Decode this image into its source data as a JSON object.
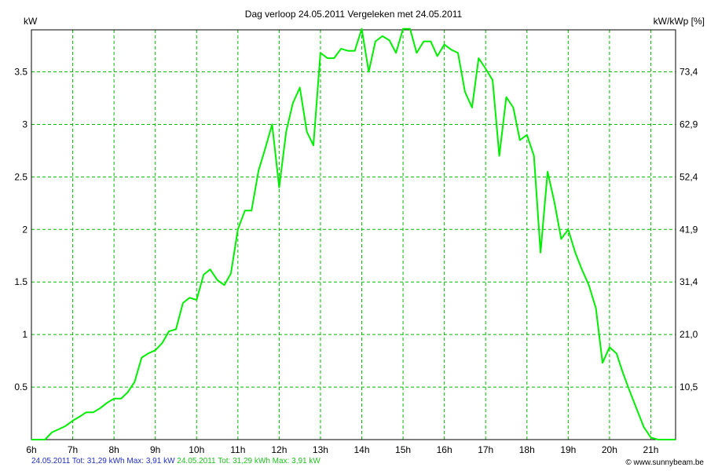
{
  "chart_data": {
    "type": "line",
    "title": "Dag  verloop 24.05.2011   Vergeleken met 24.05.2011",
    "ylabel_left": "kW",
    "ylabel_right": "kW/kWp [%]",
    "x_unit": "hour",
    "xlim": [
      6,
      21.6
    ],
    "ylim": [
      0,
      3.9
    ],
    "x_ticks": [
      "6h",
      "7h",
      "8h",
      "9h",
      "10h",
      "11h",
      "12h",
      "13h",
      "14h",
      "15h",
      "16h",
      "17h",
      "18h",
      "19h",
      "20h",
      "21h"
    ],
    "y_ticks_left": [
      "0.5",
      "1",
      "1.5",
      "2",
      "2.5",
      "3",
      "3.5"
    ],
    "y_ticks_left_values": [
      0.5,
      1,
      1.5,
      2,
      2.5,
      3,
      3.5
    ],
    "y_ticks_right": [
      "10,5",
      "21,0",
      "31,4",
      "41,9",
      "52,4",
      "62,9",
      "73,4"
    ],
    "grid": true,
    "series_color": "#00ee00",
    "series": [
      {
        "x": [
          6.0,
          6.17,
          6.33,
          6.5,
          6.67,
          6.83,
          7.0,
          7.17,
          7.33,
          7.5,
          7.67,
          7.83,
          8.0,
          8.17,
          8.33,
          8.5,
          8.67,
          8.83,
          9.0,
          9.17,
          9.33,
          9.5,
          9.67,
          9.83,
          10.0,
          10.17,
          10.33,
          10.5,
          10.67,
          10.83,
          11.0,
          11.17,
          11.33,
          11.5,
          11.67,
          11.83,
          12.0,
          12.17,
          12.33,
          12.5,
          12.67,
          12.83,
          13.0,
          13.17,
          13.33,
          13.5,
          13.67,
          13.83,
          14.0,
          14.17,
          14.33,
          14.5,
          14.67,
          14.83,
          15.0,
          15.17,
          15.33,
          15.5,
          15.67,
          15.83,
          16.0,
          16.17,
          16.33,
          16.5,
          16.67,
          16.83,
          17.0,
          17.17,
          17.33,
          17.5,
          17.67,
          17.83,
          18.0,
          18.17,
          18.33,
          18.5,
          18.67,
          18.83,
          19.0,
          19.17,
          19.33,
          19.5,
          19.67,
          19.83,
          20.0,
          20.17,
          20.33,
          20.5,
          20.67,
          20.83,
          21.0,
          21.17,
          21.33,
          21.5,
          21.6
        ],
        "y": [
          0.0,
          0.0,
          0.0,
          0.07,
          0.1,
          0.13,
          0.18,
          0.22,
          0.26,
          0.26,
          0.3,
          0.35,
          0.39,
          0.39,
          0.45,
          0.55,
          0.78,
          0.82,
          0.85,
          0.92,
          1.03,
          1.05,
          1.3,
          1.35,
          1.33,
          1.57,
          1.62,
          1.52,
          1.47,
          1.58,
          2.0,
          2.18,
          2.18,
          2.56,
          2.78,
          3.0,
          2.4,
          2.93,
          3.2,
          3.35,
          2.93,
          2.8,
          3.68,
          3.63,
          3.63,
          3.72,
          3.7,
          3.7,
          3.91,
          3.5,
          3.79,
          3.84,
          3.8,
          3.68,
          3.91,
          3.91,
          3.68,
          3.79,
          3.79,
          3.65,
          3.76,
          3.71,
          3.68,
          3.31,
          3.16,
          3.63,
          3.53,
          3.42,
          2.7,
          3.26,
          3.16,
          2.85,
          2.9,
          2.7,
          1.78,
          2.55,
          2.25,
          1.91,
          2.0,
          1.78,
          1.62,
          1.47,
          1.25,
          0.73,
          0.88,
          0.82,
          0.63,
          0.45,
          0.28,
          0.12,
          0.02,
          0.0,
          0.0,
          0.0,
          0.0
        ]
      }
    ]
  },
  "footer": {
    "series1_summary": "24.05.2011 Tot: 31,29 kWh Max: 3,91 kW",
    "series2_summary": "24.05.2011 Tot: 31,29 kWh Max: 3,91 kW",
    "credit": "© www.sunnybeam.be"
  }
}
